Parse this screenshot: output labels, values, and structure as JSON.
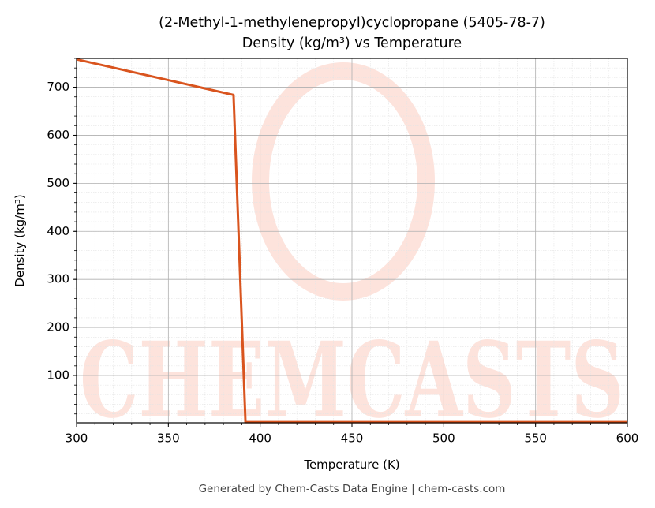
{
  "chart_data": {
    "type": "line",
    "title": [
      "(2-Methyl-1-methylenepropyl)cyclopropane (5405-78-7)",
      "Density (kg/m³) vs Temperature"
    ],
    "xlabel": "Temperature (K)",
    "ylabel": "Density (kg/m³)",
    "x": [
      300,
      385.5,
      392,
      600
    ],
    "series": [
      {
        "name": "Density",
        "color": "#d9541e",
        "values": [
          758,
          684,
          3,
          3
        ]
      }
    ],
    "xlim": [
      300,
      600
    ],
    "xticks": [
      300,
      350,
      400,
      450,
      500,
      550,
      600
    ],
    "ylim": [
      1.5,
      760
    ],
    "yticks": [
      100,
      200,
      300,
      400,
      500,
      600,
      700
    ],
    "grid": true,
    "minor_grid": true,
    "watermark": "CHEMCASTS",
    "footer": "Generated by Chem-Casts Data Engine | chem-casts.com"
  }
}
